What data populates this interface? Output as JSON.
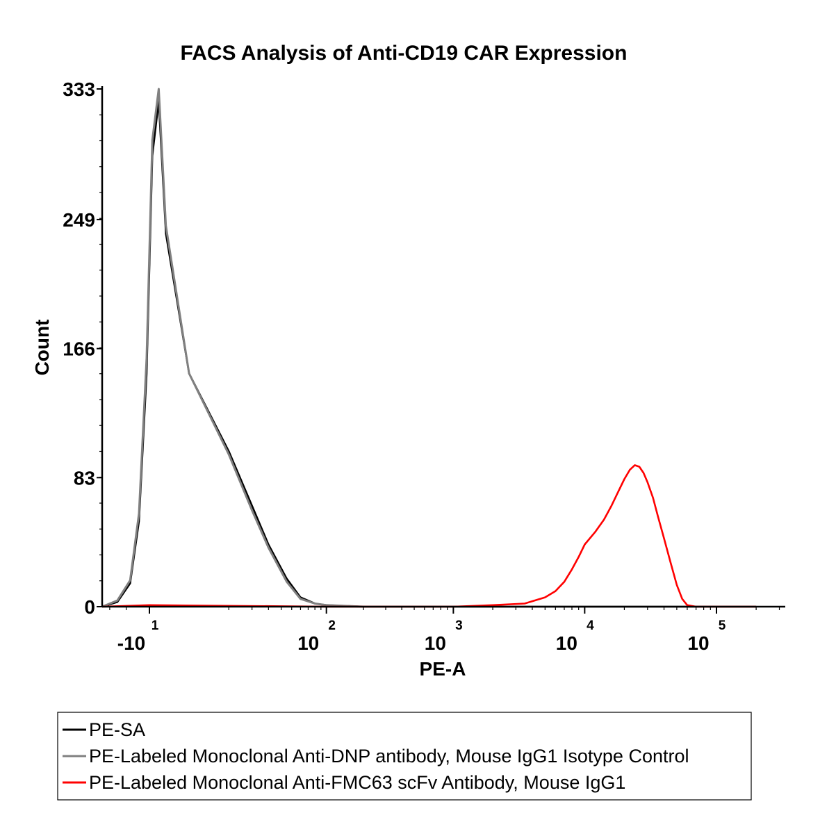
{
  "chart_data": {
    "type": "line",
    "title": "FACS Analysis of Anti-CD19 CAR Expression",
    "xlabel": "PE-A",
    "ylabel": "Count",
    "x_scale": "biexponential",
    "ylim": [
      0,
      333
    ],
    "y_ticks": [
      {
        "value": 0,
        "label": "0"
      },
      {
        "value": 83,
        "label": "83"
      },
      {
        "value": 166,
        "label": "166"
      },
      {
        "value": 249,
        "label": "249"
      },
      {
        "value": 333,
        "label": "333"
      }
    ],
    "x_ticks": [
      {
        "value": -10,
        "base": "-10",
        "exp": "1"
      },
      {
        "value": 100,
        "base": "10",
        "exp": "2"
      },
      {
        "value": 1000,
        "base": "10",
        "exp": "3"
      },
      {
        "value": 10000,
        "base": "10",
        "exp": "4"
      },
      {
        "value": 100000,
        "base": "10",
        "exp": "5"
      }
    ],
    "grid": false,
    "legend_position": "bottom",
    "series": [
      {
        "name": "PE-SA",
        "color": "#000000",
        "x": [
          -40,
          -25,
          -18,
          -14,
          -11,
          -9,
          -7,
          -5,
          0,
          10,
          20,
          30,
          45,
          60,
          80,
          100,
          200,
          500,
          1000,
          5000,
          20000,
          100000,
          200000
        ],
        "y": [
          0,
          3,
          15,
          55,
          150,
          290,
          325,
          240,
          150,
          100,
          65,
          40,
          18,
          6,
          2,
          1,
          0,
          0,
          0,
          0,
          0,
          0,
          0
        ]
      },
      {
        "name": "PE-Labeled Monoclonal Anti-DNP antibody, Mouse IgG1 Isotype Control",
        "color": "#808080",
        "x": [
          -40,
          -25,
          -18,
          -14,
          -11,
          -9,
          -7,
          -5,
          0,
          10,
          20,
          30,
          45,
          60,
          80,
          100,
          200,
          500,
          1000,
          5000,
          20000,
          100000,
          200000
        ],
        "y": [
          0,
          4,
          17,
          60,
          160,
          300,
          333,
          245,
          150,
          98,
          62,
          38,
          16,
          5,
          2,
          1,
          0,
          0,
          0,
          0,
          0,
          0,
          0
        ]
      },
      {
        "name": "PE-Labeled Monoclonal Anti-FMC63 scFv Antibody, Mouse IgG1",
        "color": "#ff0000",
        "x": [
          -40,
          -10,
          100,
          1000,
          2000,
          3500,
          5000,
          6000,
          7000,
          8000,
          9000,
          10000,
          12000,
          14000,
          16000,
          18000,
          20000,
          22000,
          24000,
          26000,
          28000,
          30000,
          33000,
          36000,
          40000,
          45000,
          50000,
          55000,
          60000,
          70000,
          100000,
          200000
        ],
        "y": [
          0,
          1,
          0,
          0,
          1,
          2,
          6,
          10,
          16,
          24,
          32,
          40,
          48,
          56,
          65,
          74,
          82,
          88,
          91,
          90,
          86,
          80,
          70,
          58,
          44,
          28,
          14,
          5,
          1,
          0,
          0,
          0
        ]
      }
    ]
  }
}
